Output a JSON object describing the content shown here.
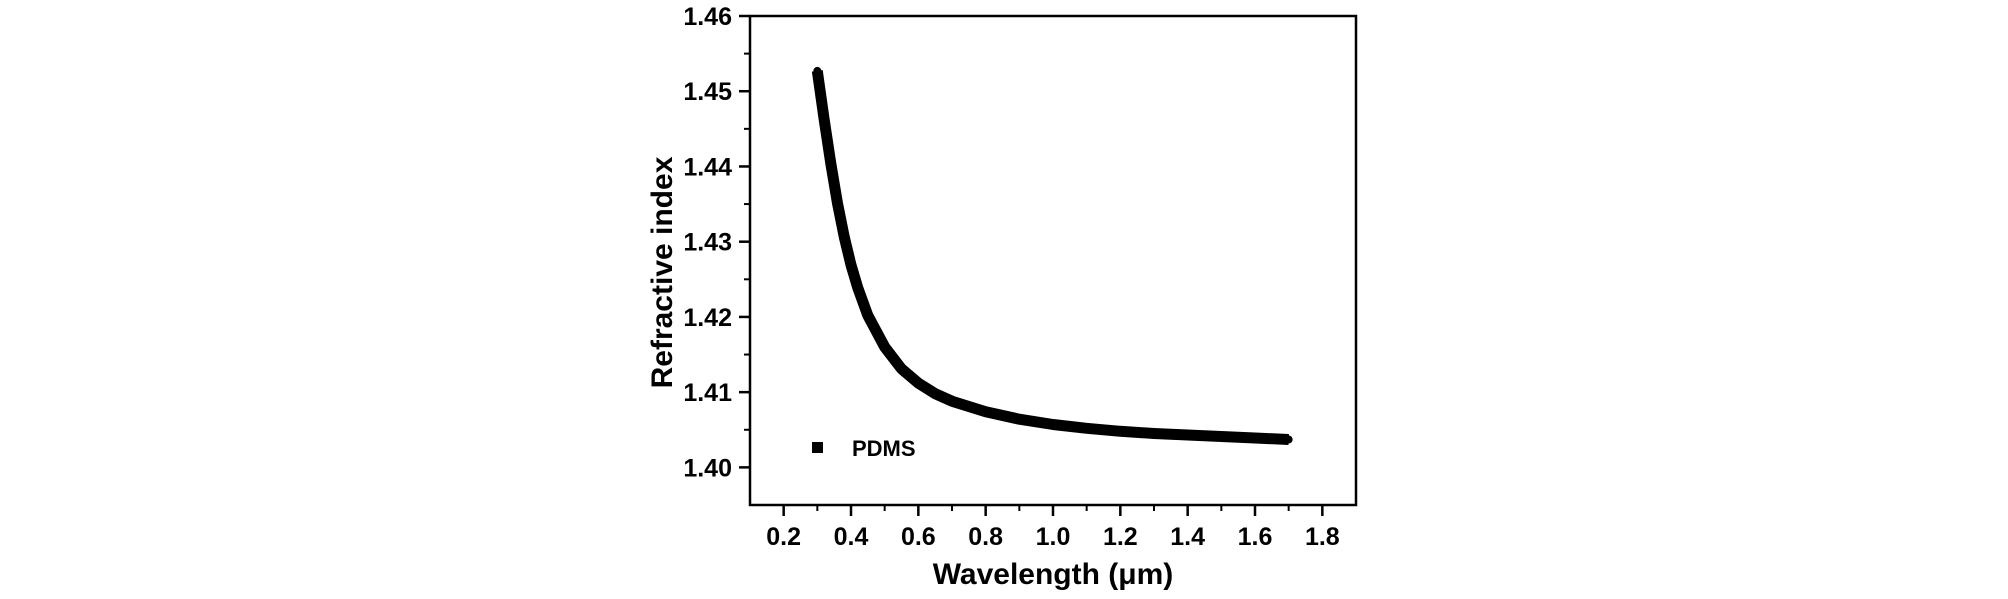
{
  "chart_data": {
    "type": "line",
    "title": "",
    "xlabel": "Wavelength (μm)",
    "ylabel": "Refractive index",
    "xlim": [
      0.1,
      1.9
    ],
    "ylim": [
      1.395,
      1.46
    ],
    "xticks": [
      "0.2",
      "0.4",
      "0.6",
      "0.8",
      "1.0",
      "1.2",
      "1.4",
      "1.6",
      "1.8"
    ],
    "yticks": [
      "1.40",
      "1.41",
      "1.42",
      "1.43",
      "1.44",
      "1.45",
      "1.46"
    ],
    "grid": false,
    "legend_position": "bottom-left",
    "series": [
      {
        "name": "PDMS",
        "color": "#000000",
        "marker": "square",
        "x": [
          0.3,
          0.32,
          0.34,
          0.36,
          0.38,
          0.4,
          0.42,
          0.45,
          0.5,
          0.55,
          0.6,
          0.65,
          0.7,
          0.8,
          0.9,
          1.0,
          1.1,
          1.2,
          1.3,
          1.4,
          1.5,
          1.6,
          1.7
        ],
        "y": [
          1.4527,
          1.4463,
          1.4404,
          1.4351,
          1.4306,
          1.4269,
          1.4239,
          1.4202,
          1.416,
          1.4131,
          1.4112,
          1.4098,
          1.4088,
          1.4074,
          1.4064,
          1.4057,
          1.4052,
          1.4048,
          1.4045,
          1.4043,
          1.4041,
          1.4039,
          1.4037
        ]
      }
    ]
  }
}
